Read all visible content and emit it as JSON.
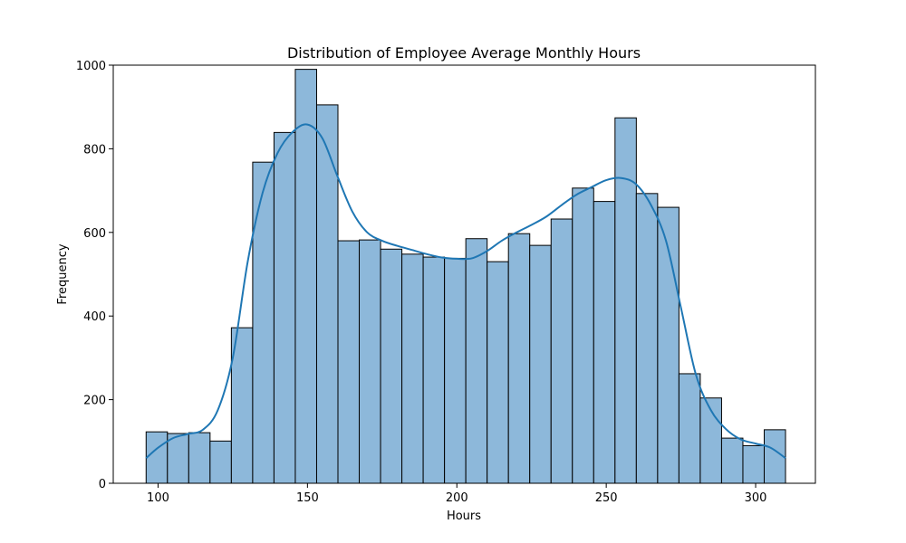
{
  "chart_data": {
    "type": "bar",
    "title": "Distribution of Employee Average Monthly Hours",
    "xlabel": "Hours",
    "ylabel": "Frequency",
    "xlim": [
      85,
      320
    ],
    "ylim": [
      0,
      1000
    ],
    "grid": false,
    "legend": "none",
    "bar_color": "#8db8da",
    "edge_color": "#000000",
    "kde_color": "#1f77b4",
    "xticks": [
      "100",
      "150",
      "200",
      "250",
      "300"
    ],
    "yticks": [
      "0",
      "200",
      "400",
      "600",
      "800",
      "1000"
    ],
    "bins": {
      "start": 96,
      "end": 310,
      "counts": [
        123,
        119,
        121,
        101,
        372,
        768,
        839,
        990,
        905,
        580,
        582,
        560,
        548,
        541,
        538,
        585,
        530,
        597,
        569,
        632,
        706,
        674,
        874,
        693,
        660,
        262,
        204,
        108,
        90,
        128
      ]
    },
    "kde": {
      "x": [
        96,
        100,
        105,
        110,
        115,
        120,
        125,
        130,
        135,
        140,
        145,
        150,
        155,
        160,
        165,
        170,
        175,
        180,
        185,
        190,
        195,
        200,
        205,
        210,
        215,
        220,
        225,
        230,
        235,
        240,
        245,
        250,
        255,
        260,
        265,
        270,
        275,
        280,
        285,
        290,
        295,
        300,
        305,
        310
      ],
      "y": [
        60,
        85,
        108,
        118,
        128,
        175,
        300,
        530,
        695,
        790,
        840,
        858,
        825,
        735,
        650,
        600,
        580,
        568,
        558,
        548,
        540,
        537,
        538,
        555,
        580,
        600,
        618,
        638,
        665,
        690,
        708,
        725,
        730,
        715,
        665,
        580,
        420,
        260,
        175,
        130,
        105,
        95,
        85,
        60
      ]
    }
  }
}
